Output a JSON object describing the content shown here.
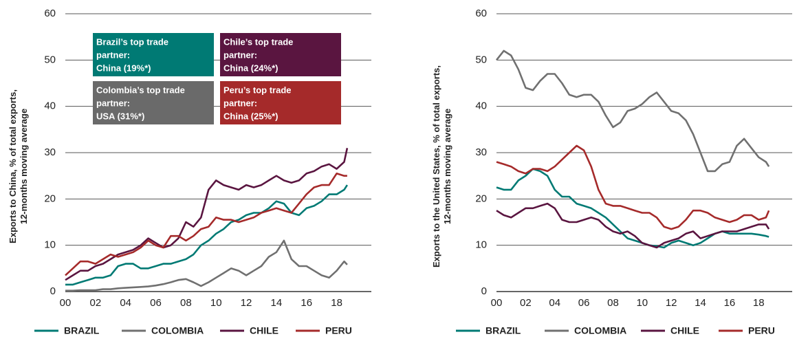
{
  "chart_data": [
    {
      "type": "line",
      "ylabel": [
        "Exports to China, % of total exports,",
        "12-months moving average"
      ],
      "x": [
        2000,
        2000.5,
        2001,
        2001.5,
        2002,
        2002.5,
        2003,
        2003.5,
        2004,
        2004.5,
        2005,
        2005.5,
        2006,
        2006.5,
        2007,
        2007.5,
        2008,
        2008.5,
        2009,
        2009.5,
        2010,
        2010.5,
        2011,
        2011.5,
        2012,
        2012.5,
        2013,
        2013.5,
        2014,
        2014.5,
        2015,
        2015.5,
        2016,
        2016.5,
        2017,
        2017.5,
        2018,
        2018.5,
        2018.7
      ],
      "xlim": [
        2000,
        2020.3
      ],
      "xticks": [
        {
          "value": 2000,
          "label": "00"
        },
        {
          "value": 2002,
          "label": "02"
        },
        {
          "value": 2004,
          "label": "04"
        },
        {
          "value": 2006,
          "label": "06"
        },
        {
          "value": 2008,
          "label": "08"
        },
        {
          "value": 2010,
          "label": "10"
        },
        {
          "value": 2012,
          "label": "12"
        },
        {
          "value": 2014,
          "label": "14"
        },
        {
          "value": 2016,
          "label": "16"
        },
        {
          "value": 2018,
          "label": "18"
        }
      ],
      "ylim": [
        0,
        60
      ],
      "yticks": [
        0,
        10,
        20,
        30,
        40,
        50,
        60
      ],
      "grid": true,
      "series": [
        {
          "name": "BRAZIL",
          "color": "#007a74",
          "values": [
            1.5,
            1.5,
            2,
            2.5,
            3,
            3,
            3.5,
            5.5,
            6,
            6,
            5,
            5,
            5.5,
            6,
            6,
            6.5,
            7,
            8,
            10,
            11,
            12.5,
            13.5,
            15,
            15.5,
            16.5,
            17,
            17,
            18,
            19.5,
            19,
            17,
            16.5,
            18,
            18.5,
            19.5,
            21,
            21,
            22,
            23
          ]
        },
        {
          "name": "COLOMBIA",
          "color": "#707070",
          "values": [
            0.2,
            0.2,
            0.3,
            0.3,
            0.3,
            0.5,
            0.5,
            0.7,
            0.8,
            0.9,
            1,
            1.1,
            1.3,
            1.6,
            2,
            2.5,
            2.7,
            2,
            1.2,
            2,
            3,
            4,
            5,
            4.5,
            3.5,
            4.5,
            5.5,
            7.5,
            8.5,
            11,
            7,
            5.5,
            5.5,
            4.5,
            3.5,
            3,
            4.5,
            6.5,
            5.8
          ]
        },
        {
          "name": "CHILE",
          "color": "#5a1540",
          "values": [
            2.5,
            3.5,
            4.5,
            4.5,
            5.5,
            6,
            7,
            8,
            8.5,
            9,
            10,
            11.5,
            10.5,
            9.5,
            10,
            11.5,
            15,
            14,
            16,
            22,
            24,
            23,
            22.5,
            22,
            23,
            22.5,
            23,
            24,
            25,
            24,
            23.5,
            24,
            25.5,
            26,
            27,
            27.5,
            26.5,
            28,
            31
          ]
        },
        {
          "name": "PERU",
          "color": "#a52a2a",
          "values": [
            3.5,
            5,
            6.5,
            6.5,
            6,
            7,
            8,
            7.5,
            8,
            8.5,
            9.5,
            11,
            10,
            9.5,
            12,
            12,
            11,
            12,
            13.5,
            14,
            16,
            15.5,
            15.5,
            15,
            15.5,
            16,
            17,
            17.5,
            18,
            17.5,
            17,
            19,
            21,
            22.5,
            23,
            23,
            25.5,
            25,
            25
          ]
        }
      ],
      "annotations": [
        {
          "lines": [
            "Brazil’s top trade",
            "partner:",
            "China (19%*)"
          ],
          "color": "#007a74"
        },
        {
          "lines": [
            "Chile’s top trade",
            "partner:",
            "China (24%*)"
          ],
          "color": "#5a1540"
        },
        {
          "lines": [
            "Colombia’s top trade",
            "partner:",
            "USA (31%*)"
          ],
          "color": "#6a6a6a"
        },
        {
          "lines": [
            "Peru’s top trade",
            "partner:",
            "China (25%*)"
          ],
          "color": "#a52a2a"
        }
      ]
    },
    {
      "type": "line",
      "ylabel": [
        "Exports to the United States, % of total exports,",
        "12-months moving average"
      ],
      "x": [
        2000,
        2000.5,
        2001,
        2001.5,
        2002,
        2002.5,
        2003,
        2003.5,
        2004,
        2004.5,
        2005,
        2005.5,
        2006,
        2006.5,
        2007,
        2007.5,
        2008,
        2008.5,
        2009,
        2009.5,
        2010,
        2010.5,
        2011,
        2011.5,
        2012,
        2012.5,
        2013,
        2013.5,
        2014,
        2014.5,
        2015,
        2015.5,
        2016,
        2016.5,
        2017,
        2017.5,
        2018,
        2018.5,
        2018.7
      ],
      "xlim": [
        2000,
        2020.3
      ],
      "xticks": [
        {
          "value": 2000,
          "label": "00"
        },
        {
          "value": 2002,
          "label": "02"
        },
        {
          "value": 2004,
          "label": "04"
        },
        {
          "value": 2006,
          "label": "06"
        },
        {
          "value": 2008,
          "label": "08"
        },
        {
          "value": 2010,
          "label": "10"
        },
        {
          "value": 2012,
          "label": "12"
        },
        {
          "value": 2014,
          "label": "14"
        },
        {
          "value": 2016,
          "label": "16"
        },
        {
          "value": 2018,
          "label": "18"
        }
      ],
      "ylim": [
        0,
        60
      ],
      "yticks": [
        0,
        10,
        20,
        30,
        40,
        50,
        60
      ],
      "grid": true,
      "series": [
        {
          "name": "BRAZIL",
          "color": "#007a74",
          "values": [
            22.5,
            22,
            22,
            24,
            25,
            26.5,
            26,
            25,
            22,
            20.5,
            20.5,
            19,
            18.5,
            18,
            17,
            16,
            14.5,
            13,
            11.5,
            11,
            10.5,
            10,
            9.8,
            9.5,
            10.5,
            11,
            10.5,
            10,
            10.5,
            11.5,
            12.5,
            13,
            12.5,
            12.5,
            12.5,
            12.5,
            12.3,
            12,
            11.8
          ]
        },
        {
          "name": "COLOMBIA",
          "color": "#707070",
          "values": [
            50,
            52,
            51,
            48,
            44,
            43.5,
            45.5,
            47,
            47,
            45,
            42.5,
            42,
            42.5,
            42.5,
            41,
            38,
            35.5,
            36.5,
            39,
            39.5,
            40.5,
            42,
            43,
            41,
            39,
            38.5,
            37,
            34,
            30,
            26,
            26,
            27.5,
            28,
            31.5,
            33,
            31,
            29,
            28,
            27
          ]
        },
        {
          "name": "CHILE",
          "color": "#5a1540",
          "values": [
            17.5,
            16.5,
            16,
            17,
            18,
            18,
            18.5,
            19,
            18,
            15.5,
            15,
            15,
            15.5,
            16,
            15.5,
            14,
            13,
            12.5,
            13,
            12,
            10.5,
            10,
            9.5,
            10.5,
            11,
            11.5,
            12.5,
            13,
            11.5,
            12,
            12.5,
            13,
            13,
            13,
            13.5,
            14,
            14.5,
            14.5,
            13.5
          ]
        },
        {
          "name": "PERU",
          "color": "#a52a2a",
          "values": [
            28,
            27.5,
            27,
            26,
            25.5,
            26.5,
            26.5,
            26,
            27,
            28.5,
            30,
            31.5,
            30.5,
            27,
            22,
            19,
            18.5,
            18.5,
            18,
            17.5,
            17,
            17,
            16,
            14,
            13.5,
            14,
            15.5,
            17.5,
            17.5,
            17,
            16,
            15.5,
            15,
            15.5,
            16.5,
            16.5,
            15.5,
            16,
            17.5
          ]
        }
      ]
    }
  ]
}
